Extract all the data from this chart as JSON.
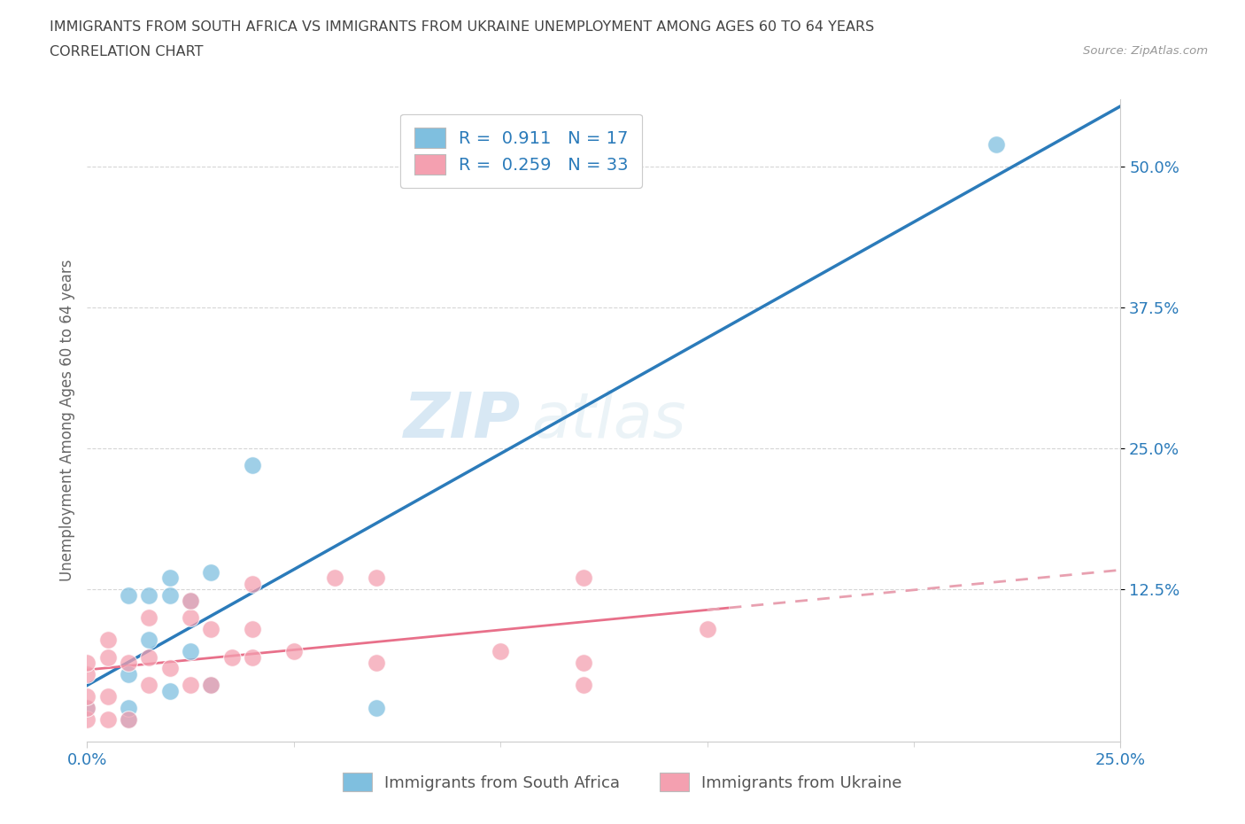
{
  "title_line1": "IMMIGRANTS FROM SOUTH AFRICA VS IMMIGRANTS FROM UKRAINE UNEMPLOYMENT AMONG AGES 60 TO 64 YEARS",
  "title_line2": "CORRELATION CHART",
  "source_text": "Source: ZipAtlas.com",
  "ylabel": "Unemployment Among Ages 60 to 64 years",
  "xlim": [
    0.0,
    0.25
  ],
  "ylim": [
    -0.01,
    0.56
  ],
  "ytick_values": [
    0.125,
    0.25,
    0.375,
    0.5
  ],
  "watermark_zip": "ZIP",
  "watermark_atlas": "atlas",
  "south_africa_color": "#7fbfdf",
  "ukraine_color": "#f4a0b0",
  "south_africa_line_color": "#2b7bba",
  "ukraine_line_color": "#e8708a",
  "ukraine_line_dashed_color": "#e8a0b0",
  "legend_sa_label": "R =  0.911   N = 17",
  "legend_uk_label": "R =  0.259   N = 33",
  "south_africa_x": [
    0.0,
    0.01,
    0.01,
    0.01,
    0.01,
    0.015,
    0.015,
    0.02,
    0.02,
    0.02,
    0.025,
    0.025,
    0.03,
    0.03,
    0.04,
    0.07,
    0.22
  ],
  "south_africa_y": [
    0.02,
    0.01,
    0.02,
    0.05,
    0.12,
    0.08,
    0.12,
    0.035,
    0.12,
    0.135,
    0.07,
    0.115,
    0.04,
    0.14,
    0.235,
    0.02,
    0.52
  ],
  "ukraine_x": [
    0.0,
    0.0,
    0.0,
    0.0,
    0.0,
    0.005,
    0.005,
    0.005,
    0.005,
    0.01,
    0.01,
    0.015,
    0.015,
    0.015,
    0.02,
    0.025,
    0.025,
    0.025,
    0.03,
    0.03,
    0.035,
    0.04,
    0.04,
    0.04,
    0.05,
    0.06,
    0.07,
    0.07,
    0.1,
    0.12,
    0.12,
    0.12,
    0.15
  ],
  "ukraine_y": [
    0.01,
    0.02,
    0.03,
    0.05,
    0.06,
    0.01,
    0.03,
    0.065,
    0.08,
    0.01,
    0.06,
    0.04,
    0.065,
    0.1,
    0.055,
    0.04,
    0.1,
    0.115,
    0.04,
    0.09,
    0.065,
    0.065,
    0.09,
    0.13,
    0.07,
    0.135,
    0.06,
    0.135,
    0.07,
    0.04,
    0.06,
    0.135,
    0.09
  ],
  "background_color": "#ffffff",
  "grid_color": "#cccccc",
  "title_color": "#444444",
  "axis_label_color": "#666666",
  "legend_text_color": "#2b7bba",
  "tick_color": "#2b7bba",
  "source_color": "#999999"
}
